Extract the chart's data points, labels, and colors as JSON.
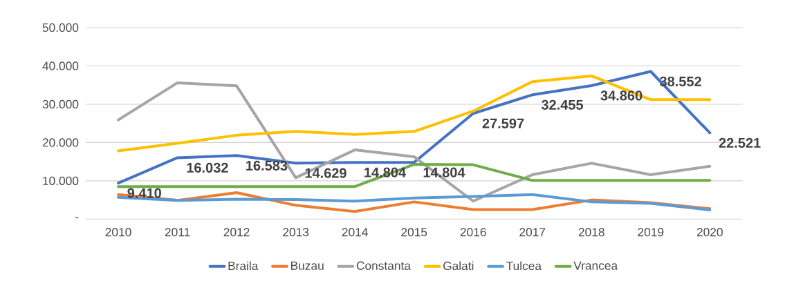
{
  "chart_data": {
    "type": "line",
    "categories": [
      "2010",
      "2011",
      "2012",
      "2013",
      "2014",
      "2015",
      "2016",
      "2017",
      "2018",
      "2019",
      "2020"
    ],
    "series": [
      {
        "name": "Braila",
        "color": "#4472c4",
        "values": [
          9410,
          16032,
          16583,
          14629,
          14804,
          14804,
          27597,
          32455,
          34860,
          38552,
          22521
        ],
        "value_labels": [
          "9.410",
          "16.032",
          "16.583",
          "14.629",
          "14.804",
          "14.804",
          "27.597",
          "32.455",
          "34.860",
          "38.552",
          "22.521"
        ]
      },
      {
        "name": "Buzau",
        "color": "#ed7d31",
        "values": [
          6400,
          4900,
          6900,
          3600,
          2000,
          4500,
          2500,
          2500,
          5000,
          4300,
          2700
        ]
      },
      {
        "name": "Constanta",
        "color": "#a5a5a5",
        "values": [
          25900,
          35600,
          34800,
          10800,
          18100,
          16300,
          4700,
          11600,
          14600,
          11600,
          13800
        ]
      },
      {
        "name": "Galati",
        "color": "#ffc000",
        "values": [
          17800,
          19800,
          21900,
          22900,
          22100,
          22900,
          28200,
          35900,
          37400,
          31200,
          31200
        ]
      },
      {
        "name": "Tulcea",
        "color": "#5b9bd5",
        "values": [
          5700,
          4900,
          5200,
          5100,
          4700,
          5500,
          5900,
          6400,
          4500,
          4100,
          2400
        ]
      },
      {
        "name": "Vrancea",
        "color": "#70ad47",
        "values": [
          8500,
          8500,
          8500,
          8500,
          8500,
          14300,
          14200,
          10100,
          10100,
          10100,
          10100
        ]
      }
    ],
    "ylim": [
      0,
      50000
    ],
    "yticks": [
      {
        "value": 0,
        "label": "-"
      },
      {
        "value": 10000,
        "label": "10.000"
      },
      {
        "value": 20000,
        "label": "20.000"
      },
      {
        "value": 30000,
        "label": "30.000"
      },
      {
        "value": 40000,
        "label": "40.000"
      },
      {
        "value": 50000,
        "label": "50.000"
      }
    ],
    "grid": "y",
    "legend": "bottom",
    "marker": "none",
    "line_style": "solid"
  }
}
